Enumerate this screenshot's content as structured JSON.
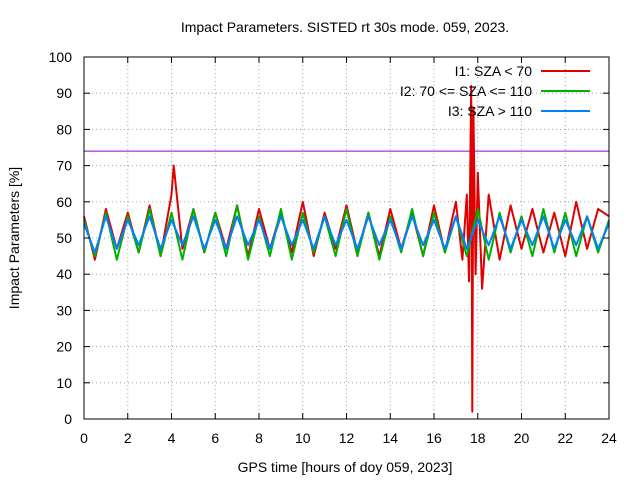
{
  "chart_data": {
    "type": "line",
    "title": "Impact Parameters. SISTED rt 30s mode. 059, 2023.",
    "xlabel": "GPS time [hours of doy 059, 2023]",
    "ylabel": "Impact Parameters [%]",
    "xlim": [
      0,
      24
    ],
    "ylim": [
      0,
      100
    ],
    "x_ticks": [
      "0",
      "2",
      "4",
      "6",
      "8",
      "10",
      "12",
      "14",
      "16",
      "18",
      "20",
      "22",
      "24"
    ],
    "y_ticks": [
      "0",
      "10",
      "20",
      "30",
      "40",
      "50",
      "60",
      "70",
      "80",
      "90",
      "100"
    ],
    "grid": true,
    "legend_position": "top-right",
    "reference_line": {
      "y": 74,
      "color": "#9400d3"
    },
    "series": [
      {
        "name": "I1: SZA < 70",
        "color": "#e00000",
        "x": [
          0.0,
          0.5,
          1.0,
          1.5,
          2.0,
          2.5,
          3.0,
          3.5,
          4.0,
          4.1,
          4.5,
          5.0,
          5.5,
          6.0,
          6.5,
          7.0,
          7.5,
          8.0,
          8.5,
          9.0,
          9.5,
          10.0,
          10.5,
          11.0,
          11.5,
          12.0,
          12.5,
          13.0,
          13.5,
          14.0,
          14.5,
          15.0,
          15.5,
          16.0,
          16.5,
          17.0,
          17.3,
          17.5,
          17.6,
          17.7,
          17.75,
          17.8,
          17.9,
          18.0,
          18.2,
          18.5,
          19.0,
          19.5,
          20.0,
          20.5,
          21.0,
          21.5,
          22.0,
          22.5,
          23.0,
          23.5,
          24.0
        ],
        "values": [
          56,
          44,
          58,
          47,
          57,
          46,
          59,
          45,
          62,
          70,
          47,
          58,
          46,
          57,
          47,
          59,
          45,
          58,
          47,
          57,
          46,
          60,
          45,
          57,
          47,
          59,
          46,
          57,
          45,
          58,
          47,
          57,
          45,
          59,
          46,
          60,
          44,
          62,
          38,
          92,
          2,
          86,
          40,
          68,
          36,
          62,
          44,
          59,
          47,
          58,
          46,
          57,
          45,
          60,
          47,
          58,
          56
        ]
      },
      {
        "name": "I2: 70 <= SZA <= 110",
        "color": "#00b000",
        "x": [
          0.0,
          0.5,
          1.0,
          1.5,
          2.0,
          2.5,
          3.0,
          3.5,
          4.0,
          4.5,
          5.0,
          5.5,
          6.0,
          6.5,
          7.0,
          7.5,
          8.0,
          8.5,
          9.0,
          9.5,
          10.0,
          10.5,
          11.0,
          11.5,
          12.0,
          12.5,
          13.0,
          13.5,
          14.0,
          14.5,
          15.0,
          15.5,
          16.0,
          16.5,
          17.0,
          17.5,
          18.0,
          18.5,
          19.0,
          19.5,
          20.0,
          20.5,
          21.0,
          21.5,
          22.0,
          22.5,
          23.0,
          23.5,
          24.0
        ],
        "values": [
          55,
          45,
          57,
          44,
          56,
          46,
          58,
          45,
          57,
          44,
          58,
          46,
          57,
          45,
          59,
          44,
          56,
          45,
          58,
          44,
          57,
          46,
          56,
          45,
          58,
          45,
          57,
          44,
          56,
          46,
          58,
          45,
          57,
          46,
          56,
          45,
          58,
          44,
          57,
          46,
          56,
          45,
          58,
          46,
          57,
          45,
          56,
          46,
          55
        ]
      },
      {
        "name": "I3: SZA > 110",
        "color": "#0080ff",
        "x": [
          0.0,
          0.5,
          1.0,
          1.5,
          2.0,
          2.5,
          3.0,
          3.5,
          4.0,
          4.5,
          5.0,
          5.5,
          6.0,
          6.5,
          7.0,
          7.5,
          8.0,
          8.5,
          9.0,
          9.5,
          10.0,
          10.5,
          11.0,
          11.5,
          12.0,
          12.5,
          13.0,
          13.5,
          14.0,
          14.5,
          15.0,
          15.5,
          16.0,
          16.5,
          17.0,
          17.5,
          18.0,
          18.5,
          19.0,
          19.5,
          20.0,
          20.5,
          21.0,
          21.5,
          22.0,
          22.5,
          23.0,
          23.5,
          24.0
        ],
        "values": [
          54,
          46,
          56,
          47,
          55,
          48,
          56,
          47,
          55,
          48,
          56,
          47,
          55,
          47,
          56,
          48,
          55,
          47,
          56,
          48,
          55,
          47,
          56,
          48,
          55,
          47,
          56,
          48,
          55,
          47,
          56,
          48,
          55,
          47,
          56,
          47,
          55,
          48,
          56,
          47,
          55,
          48,
          56,
          47,
          55,
          48,
          56,
          47,
          54
        ]
      }
    ]
  }
}
